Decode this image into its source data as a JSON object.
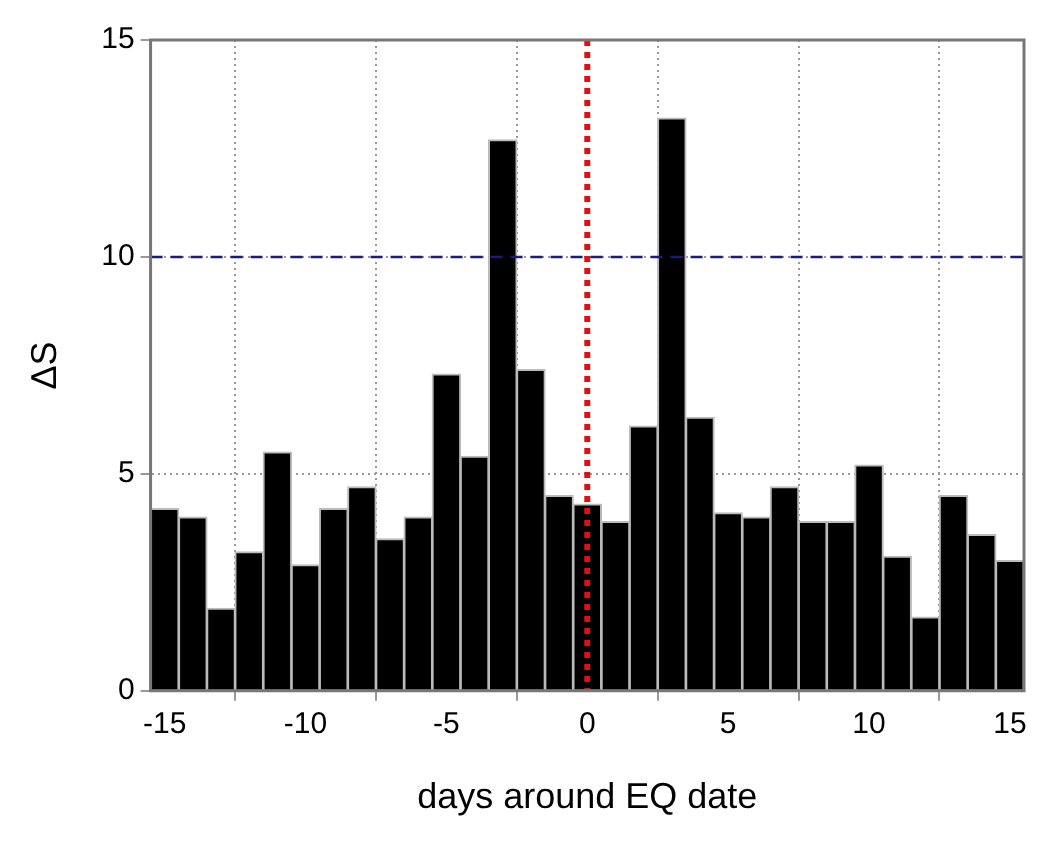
{
  "chart_data": {
    "type": "bar",
    "xlabel": "days around EQ date",
    "ylabel": "ΔS",
    "x": [
      -15,
      -14,
      -13,
      -12,
      -11,
      -10,
      -9,
      -8,
      -7,
      -6,
      -5,
      -4,
      -3,
      -2,
      -1,
      0,
      1,
      2,
      3,
      4,
      5,
      6,
      7,
      8,
      9,
      10,
      11,
      12,
      13,
      14,
      15
    ],
    "values": [
      4.2,
      4.0,
      1.9,
      3.2,
      5.5,
      2.9,
      4.2,
      4.7,
      3.5,
      4.0,
      7.3,
      5.4,
      12.7,
      7.4,
      4.5,
      4.3,
      3.9,
      6.1,
      13.2,
      6.3,
      4.1,
      4.0,
      4.7,
      3.9,
      3.9,
      5.2,
      3.1,
      1.7,
      4.5,
      3.6,
      3.0
    ],
    "color": "#000000",
    "xlim": [
      -15.5,
      15.5
    ],
    "xticks": [
      -15,
      -10,
      -5,
      0,
      5,
      10,
      15
    ],
    "ylim": [
      0,
      15
    ],
    "yticks": [
      0,
      5,
      10,
      15
    ],
    "grid": true,
    "legend": false,
    "ref_lines": [
      {
        "axis": "y",
        "value": 10,
        "color": "#1a1a80",
        "line_style": "dashed"
      },
      {
        "axis": "x",
        "value": 0,
        "color": "#dd1111",
        "line_style": "dotted"
      }
    ]
  }
}
